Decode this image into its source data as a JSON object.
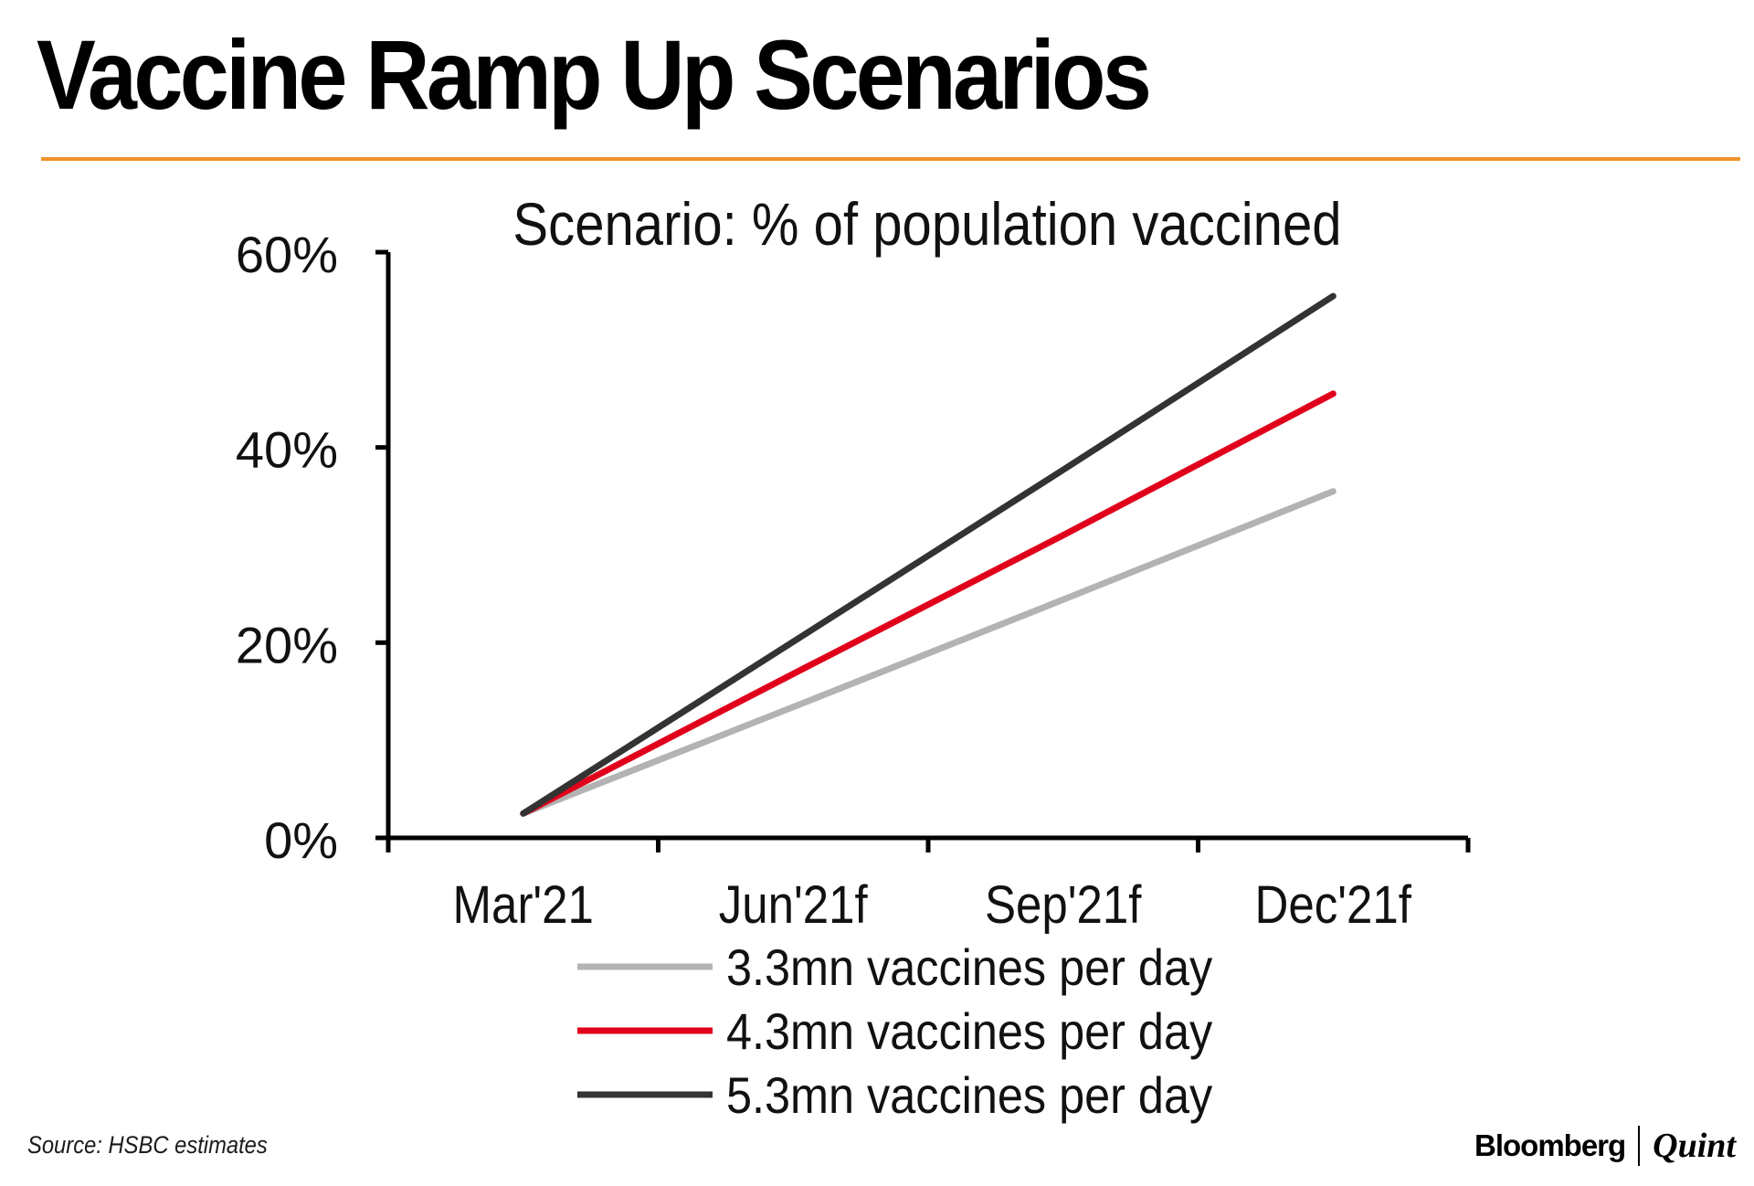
{
  "page": {
    "title": "Vaccine Ramp Up Scenarios",
    "source": "Source: HSBC estimates",
    "brand": {
      "primary": "Bloomberg",
      "secondary": "Quint"
    },
    "colors": {
      "rule": "#f0922b"
    }
  },
  "chart_data": {
    "type": "line",
    "title": "Scenario: % of population vaccined",
    "categories": [
      "Mar'21",
      "Jun'21f",
      "Sep'21f",
      "Dec'21f"
    ],
    "y_ticks": [
      "0%",
      "20%",
      "40%",
      "60%"
    ],
    "y_tick_values": [
      0,
      20,
      40,
      60
    ],
    "ylim": [
      0,
      60
    ],
    "xlabel": "",
    "ylabel": "",
    "grid": false,
    "legend_position": "bottom",
    "series": [
      {
        "name": "3.3mn vaccines per day",
        "values": [
          2.5,
          13.4,
          24.4,
          35.5
        ],
        "color": "#b3b3b3"
      },
      {
        "name": "4.3mn vaccines per day",
        "values": [
          2.5,
          16.8,
          31.0,
          45.5
        ],
        "color": "#e0001b"
      },
      {
        "name": "5.3mn vaccines per day",
        "values": [
          2.5,
          20.1,
          37.7,
          55.5
        ],
        "color": "#333333"
      }
    ]
  }
}
